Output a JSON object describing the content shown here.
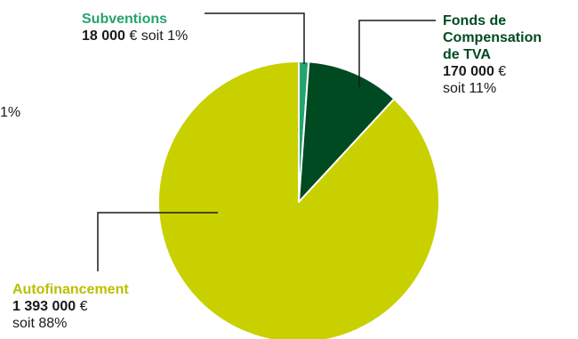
{
  "chart_data": {
    "type": "pie",
    "title": "",
    "slices": [
      {
        "label": "Subventions",
        "amount": "18 000",
        "currency": "€",
        "percent_text": "soit 1%",
        "value": 18000,
        "color": "#25a36f"
      },
      {
        "label": "Fonds de Compensation de TVA",
        "label_lines": [
          "Fonds de",
          "Compensation",
          "de TVA"
        ],
        "amount": "170 000",
        "currency": "€",
        "percent_text": "soit 11%",
        "value": 170000,
        "color": "#004a22"
      },
      {
        "label": "Autofinancement",
        "amount": "1 393 000",
        "currency": "€",
        "percent_text": "soit 88%",
        "value": 1393000,
        "color": "#c8d000"
      }
    ]
  },
  "stray_text": "1%"
}
